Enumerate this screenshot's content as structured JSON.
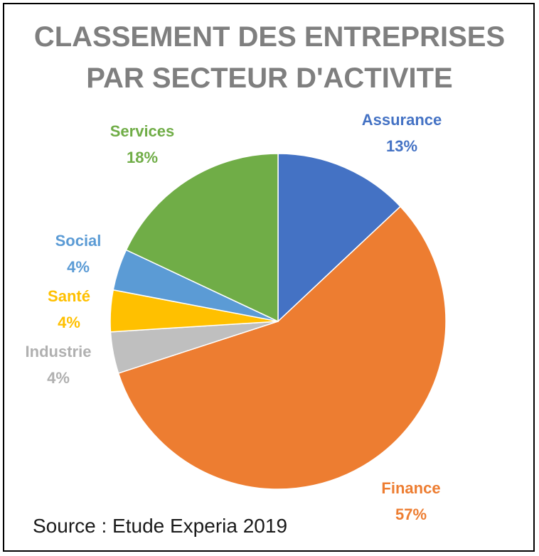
{
  "chart_data": {
    "type": "pie",
    "title": "CLASSEMENT DES ENTREPRISES PAR SECTEUR D'ACTIVITE",
    "title_lines": [
      "CLASSEMENT DES ENTREPRISES",
      "PAR SECTEUR D'ACTIVITE"
    ],
    "slices": [
      {
        "label": "Assurance",
        "value": 13,
        "value_label": "13%",
        "color": "#4472c4"
      },
      {
        "label": "Finance",
        "value": 57,
        "value_label": "57%",
        "color": "#ed7d31"
      },
      {
        "label": "Industrie",
        "value": 4,
        "value_label": "4%",
        "color": "#bfbfbf"
      },
      {
        "label": "Santé",
        "value": 4,
        "value_label": "4%",
        "color": "#ffc000"
      },
      {
        "label": "Social",
        "value": 4,
        "value_label": "4%",
        "color": "#5b9bd5"
      },
      {
        "label": "Services",
        "value": 18,
        "value_label": "18%",
        "color": "#70ad47"
      }
    ],
    "start_angle": "12 o'clock",
    "direction": "clockwise",
    "legend": "none"
  },
  "source": "Source : Etude Experia 2019"
}
